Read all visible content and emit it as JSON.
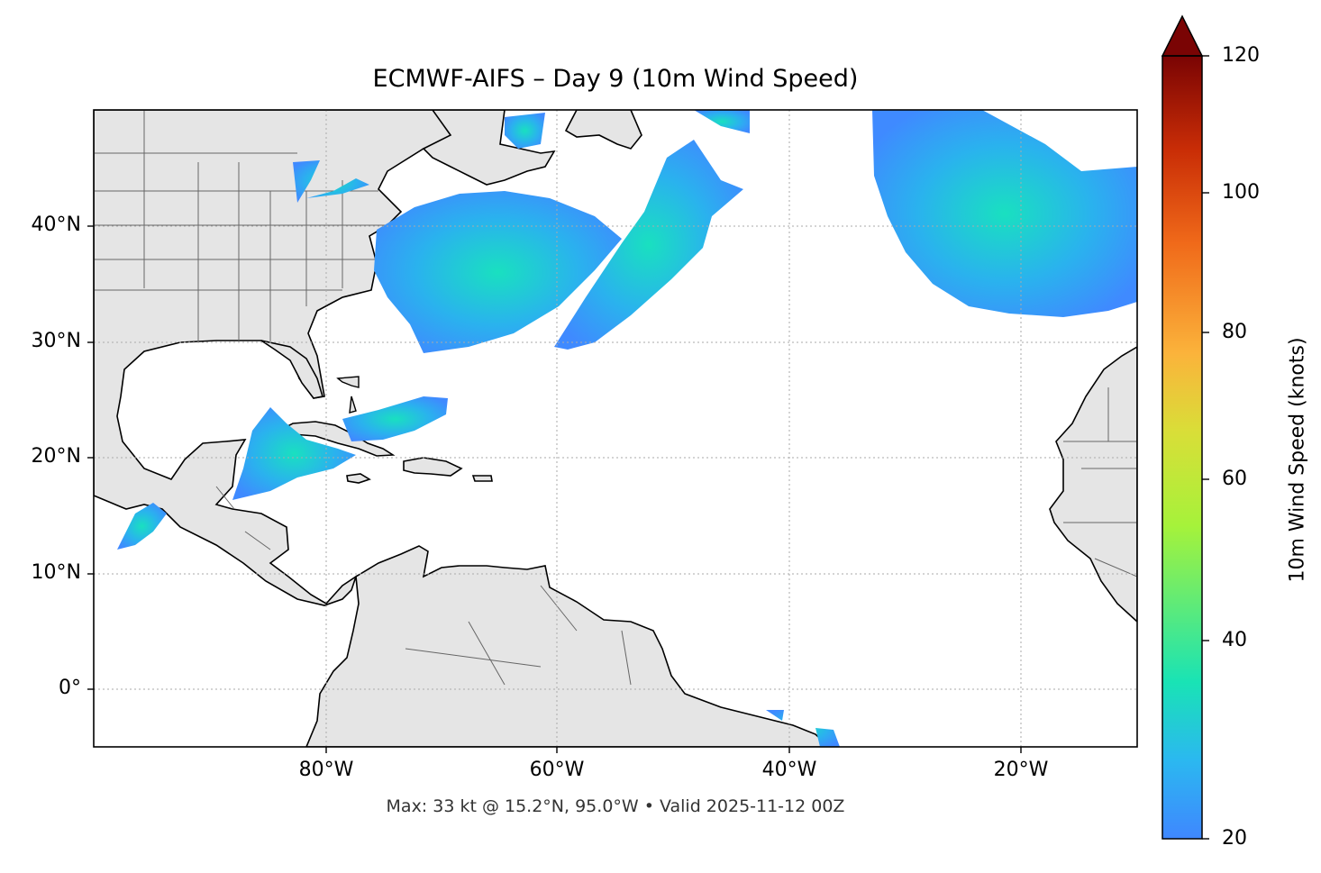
{
  "title": "ECMWF-AIFS – Day 9 (10m Wind Speed)",
  "footer": "Max: 33 kt @ 15.2°N, 95.0°W • Valid 2025-11-12 00Z",
  "map": {
    "extent_lon": [
      -100,
      -10
    ],
    "extent_lat": [
      -5,
      50
    ],
    "land_color": "#e5e5e5",
    "grid": true,
    "x_ticks": [
      "80°W",
      "60°W",
      "40°W",
      "20°W"
    ],
    "y_ticks": [
      "40°N",
      "30°N",
      "20°N",
      "10°N",
      "0°"
    ]
  },
  "colorbar": {
    "label": "10m Wind Speed (knots)",
    "ticks": [
      "120",
      "100",
      "80",
      "60",
      "40",
      "20"
    ],
    "range": [
      20,
      120
    ],
    "extend": "max",
    "colors": [
      "#3f87ff",
      "#2bb8f0",
      "#19e3b5",
      "#a6f23a",
      "#d9de38",
      "#fbb33b",
      "#f06a1a",
      "#c92d06",
      "#7a0404"
    ]
  },
  "wind_max": {
    "speed_kt": 33,
    "lat": 15.2,
    "lon": -95.0
  }
}
